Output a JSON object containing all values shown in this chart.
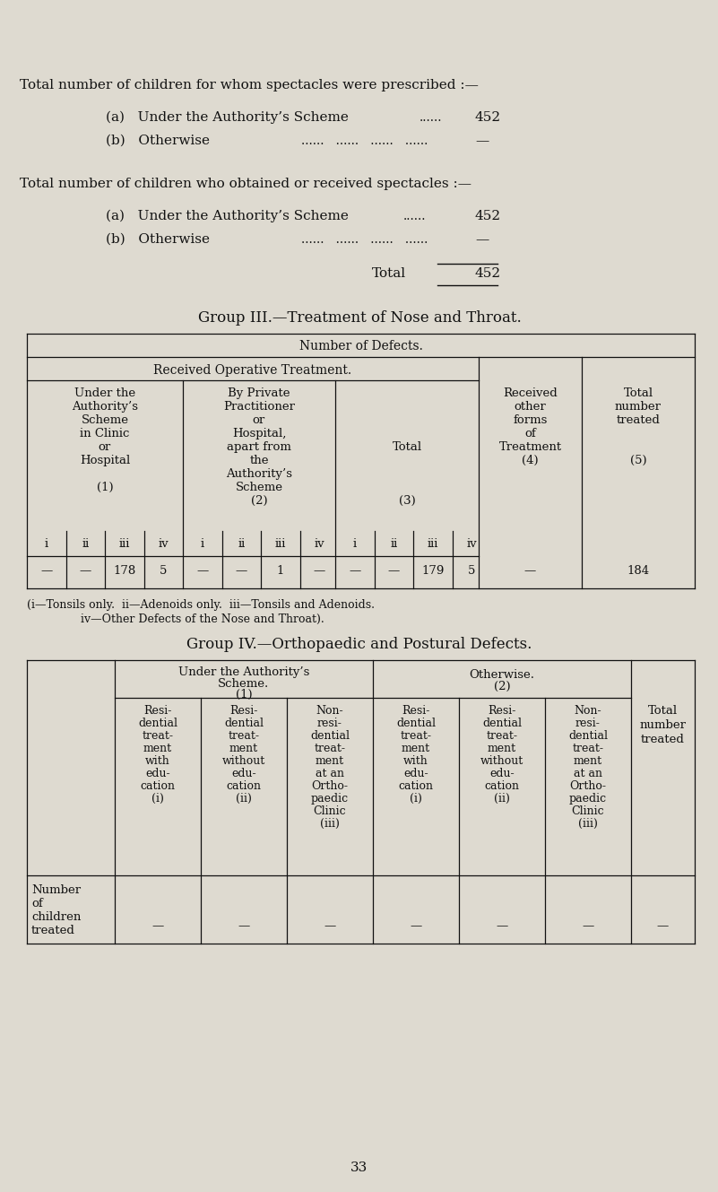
{
  "bg_color": "#dedad0",
  "text_color": "#111111",
  "page_number": "33",
  "top_section": {
    "line1": "Total number of children for whom spectacles were prescribed :—",
    "line2a_label": "(a)   Under the Authority’s Scheme",
    "line2a_dots": "......",
    "line2a_value": "452",
    "line2b_label": "(b)   Otherwise",
    "line2b_dots": "......   ......   ......   ......",
    "line2b_value": "—",
    "line3": "Total number of children who obtained or received spectacles :—",
    "line4a_label": "(a)   Under the Authority’s Scheme",
    "line4a_dots": "......",
    "line4a_value": "452",
    "line4b_label": "(b)   Otherwise",
    "line4b_dots": "......   ......   ......   ......",
    "line4b_value": "—",
    "total_label": "Total",
    "total_value": "452"
  },
  "group3": {
    "title": "Group III.—Treatment of Nose and Throat.",
    "col_header_main": "Number of Defects.",
    "col_header_sub1": "Received Operative Treatment.",
    "footnote_line1": "(i—Tonsils only.  ii—Adenoids only.  iii—Tonsils and Adenoids.",
    "footnote_line2": "iv—Other Defects of the Nose and Throat)."
  },
  "group4": {
    "title": "Group IV.—Orthopaedic and Postural Defects.",
    "row_label_lines": [
      "Number",
      "of",
      "children",
      "treated"
    ]
  }
}
